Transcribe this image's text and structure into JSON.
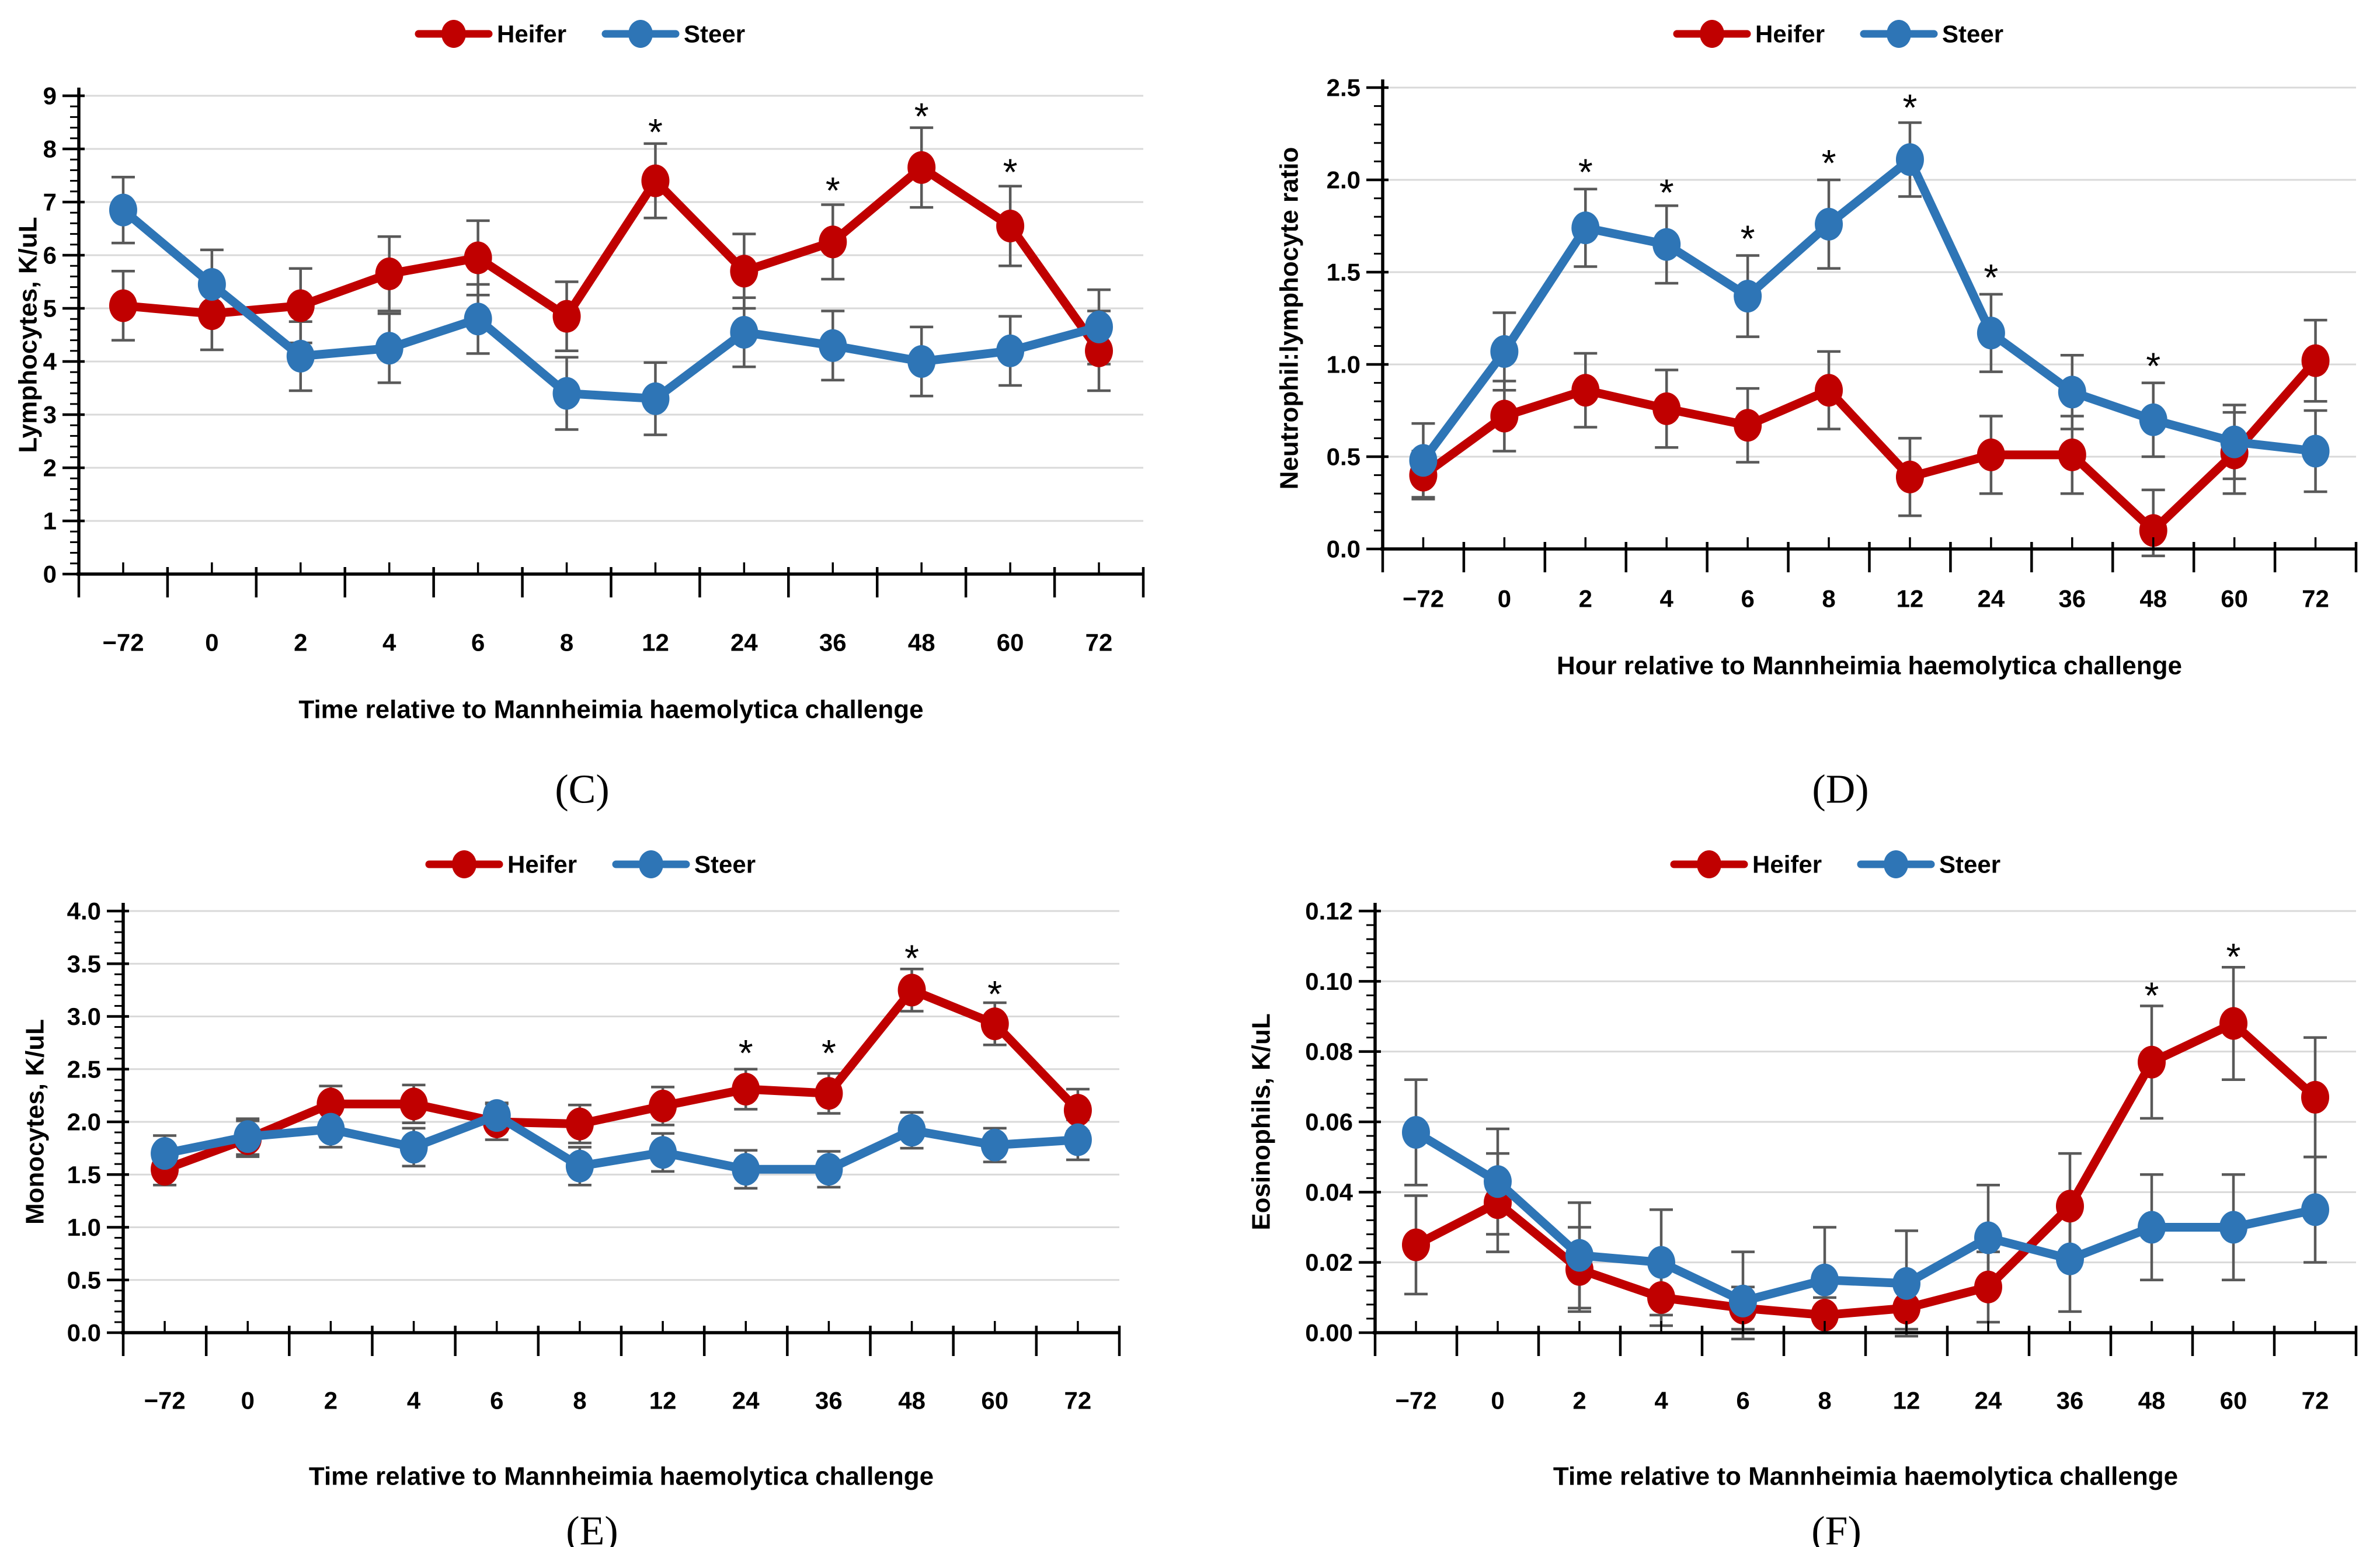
{
  "figure": {
    "background": "#FFFFFF",
    "colors": {
      "heifer": "#C00000",
      "steer": "#2E75B6",
      "error_bar": "#595959",
      "gridline": "#D9D9D9",
      "axis": "#000000",
      "asterisk": "#000000"
    },
    "legend": {
      "items": [
        {
          "label": "Heifer",
          "color": "#C00000"
        },
        {
          "label": "Steer",
          "color": "#2E75B6"
        }
      ]
    },
    "asterisk_symbol": "*"
  },
  "chart_data": [
    {
      "type": "line",
      "panel_letter": "(C)",
      "ylabel": "Lymphocytes, K/uL",
      "xlabel": "Time relative to Mannheimia haemolytica challenge",
      "ylim": [
        0,
        9
      ],
      "ytick_step": 1,
      "y_minor_step": 0.2,
      "y_decimals": 0,
      "grid": true,
      "legend_position": "top-center",
      "categories": [
        "−72",
        "0",
        "2",
        "4",
        "6",
        "8",
        "12",
        "24",
        "36",
        "48",
        "60",
        "72"
      ],
      "series": [
        {
          "name": "Heifer",
          "color": "#C00000",
          "values": [
            5.05,
            4.9,
            5.05,
            5.65,
            5.95,
            4.85,
            7.4,
            5.7,
            6.25,
            7.65,
            6.55,
            4.2
          ],
          "errors": [
            0.65,
            0.68,
            0.7,
            0.7,
            0.7,
            0.65,
            0.7,
            0.7,
            0.7,
            0.75,
            0.75,
            0.75
          ]
        },
        {
          "name": "Steer",
          "color": "#2E75B6",
          "values": [
            6.85,
            5.45,
            4.1,
            4.25,
            4.8,
            3.4,
            3.3,
            4.55,
            4.3,
            4.0,
            4.2,
            4.65
          ],
          "errors": [
            0.62,
            0.65,
            0.65,
            0.65,
            0.65,
            0.68,
            0.68,
            0.65,
            0.65,
            0.65,
            0.65,
            0.7
          ]
        }
      ],
      "significance_asterisks": [
        {
          "category": "12",
          "y": 8.45
        },
        {
          "category": "36",
          "y": 7.35
        },
        {
          "category": "48",
          "y": 8.75
        },
        {
          "category": "60",
          "y": 7.7
        }
      ]
    },
    {
      "type": "line",
      "panel_letter": "(D)",
      "ylabel": "Neutrophil:lymphocyte ratio",
      "xlabel": "Hour relative to Mannheimia haemolytica challenge",
      "ylim": [
        0,
        2.5
      ],
      "ytick_step": 0.5,
      "y_minor_step": 0.1,
      "y_decimals": 1,
      "grid": true,
      "legend_position": "top-center",
      "categories": [
        "−72",
        "0",
        "2",
        "4",
        "6",
        "8",
        "12",
        "24",
        "36",
        "48",
        "60",
        "72"
      ],
      "series": [
        {
          "name": "Heifer",
          "color": "#C00000",
          "values": [
            0.4,
            0.72,
            0.86,
            0.76,
            0.67,
            0.86,
            0.39,
            0.51,
            0.51,
            0.1,
            0.52,
            1.02
          ],
          "errors": [
            0.13,
            0.19,
            0.2,
            0.21,
            0.2,
            0.21,
            0.21,
            0.21,
            0.21,
            0.22,
            0.22,
            0.22
          ]
        },
        {
          "name": "Steer",
          "color": "#2E75B6",
          "values": [
            0.48,
            1.07,
            1.74,
            1.65,
            1.37,
            1.76,
            2.11,
            1.17,
            0.85,
            0.7,
            0.58,
            0.53
          ],
          "errors": [
            0.2,
            0.21,
            0.21,
            0.21,
            0.22,
            0.24,
            0.2,
            0.21,
            0.2,
            0.2,
            0.2,
            0.22
          ]
        }
      ],
      "significance_asterisks": [
        {
          "category": "2",
          "y": 2.08
        },
        {
          "category": "4",
          "y": 1.97
        },
        {
          "category": "6",
          "y": 1.72
        },
        {
          "category": "8",
          "y": 2.13
        },
        {
          "category": "12",
          "y": 2.43
        },
        {
          "category": "24",
          "y": 1.51
        },
        {
          "category": "48",
          "y": 1.03
        }
      ]
    },
    {
      "type": "line",
      "panel_letter": "(E)",
      "ylabel": "Monocytes, K/uL",
      "xlabel": "Time relative to Mannheimia haemolytica challenge",
      "ylim": [
        0,
        4
      ],
      "ytick_step": 0.5,
      "y_minor_step": 0.1,
      "y_decimals": 1,
      "grid": true,
      "legend_position": "top-center",
      "categories": [
        "−72",
        "0",
        "2",
        "4",
        "6",
        "8",
        "12",
        "24",
        "36",
        "48",
        "60",
        "72"
      ],
      "series": [
        {
          "name": "Heifer",
          "color": "#C00000",
          "values": [
            1.55,
            1.84,
            2.17,
            2.17,
            2.0,
            1.98,
            2.15,
            2.31,
            2.27,
            3.25,
            2.93,
            2.11
          ],
          "errors": [
            0.15,
            0.17,
            0.17,
            0.18,
            0.17,
            0.18,
            0.18,
            0.19,
            0.19,
            0.2,
            0.2,
            0.2
          ]
        },
        {
          "name": "Steer",
          "color": "#2E75B6",
          "values": [
            1.7,
            1.86,
            1.93,
            1.76,
            2.06,
            1.58,
            1.71,
            1.55,
            1.55,
            1.92,
            1.78,
            1.83
          ],
          "errors": [
            0.17,
            0.17,
            0.17,
            0.18,
            0.12,
            0.18,
            0.18,
            0.18,
            0.17,
            0.17,
            0.16,
            0.19
          ]
        }
      ],
      "significance_asterisks": [
        {
          "category": "24",
          "y": 2.72
        },
        {
          "category": "36",
          "y": 2.72
        },
        {
          "category": "48",
          "y": 3.62
        },
        {
          "category": "60",
          "y": 3.28
        }
      ]
    },
    {
      "type": "line",
      "panel_letter": "(F)",
      "ylabel": "Eosinophils, K/uL",
      "xlabel": "Time relative to Mannheimia haemolytica challenge",
      "ylim": [
        0,
        0.12
      ],
      "ytick_step": 0.02,
      "y_minor_step": 0.004,
      "y_decimals": 2,
      "grid": true,
      "legend_position": "top-center",
      "categories": [
        "−72",
        "0",
        "2",
        "4",
        "6",
        "8",
        "12",
        "24",
        "36",
        "48",
        "60",
        "72"
      ],
      "series": [
        {
          "name": "Heifer",
          "color": "#C00000",
          "values": [
            0.025,
            0.037,
            0.018,
            0.01,
            0.007,
            0.005,
            0.007,
            0.013,
            0.036,
            0.077,
            0.088,
            0.067
          ],
          "errors": [
            0.014,
            0.014,
            0.012,
            0.008,
            0.006,
            0.005,
            0.006,
            0.01,
            0.015,
            0.016,
            0.016,
            0.017
          ]
        },
        {
          "name": "Steer",
          "color": "#2E75B6",
          "values": [
            0.057,
            0.043,
            0.022,
            0.02,
            0.009,
            0.015,
            0.014,
            0.027,
            0.021,
            0.03,
            0.03,
            0.035
          ],
          "errors": [
            0.015,
            0.015,
            0.015,
            0.015,
            0.014,
            0.015,
            0.015,
            0.015,
            0.015,
            0.015,
            0.015,
            0.015
          ]
        }
      ],
      "significance_asterisks": [
        {
          "category": "48",
          "y": 0.098
        },
        {
          "category": "60",
          "y": 0.109
        }
      ]
    }
  ]
}
